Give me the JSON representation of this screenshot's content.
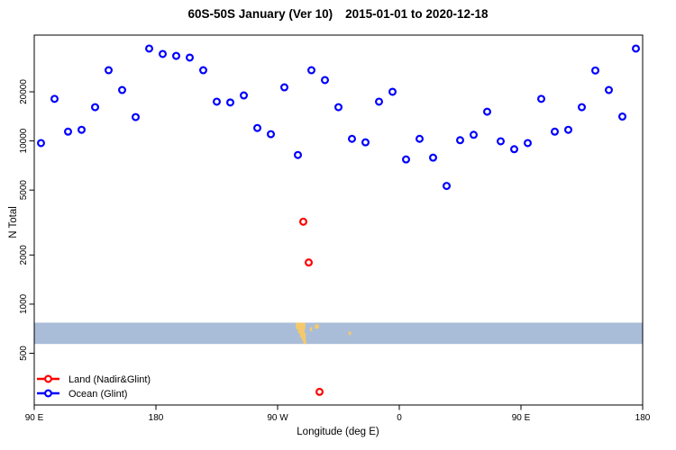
{
  "chart_data": {
    "type": "scatter",
    "title_main": "60S-50S January (Ver 10)",
    "title_dates": "2015-01-01 to 2020-12-18",
    "xlabel": "Longitude (deg E)",
    "ylabel": "N Total",
    "y_scale": "log",
    "grid": false,
    "xlim": [
      90,
      540
    ],
    "ylim": [
      241,
      44500
    ],
    "x_ticks": [
      {
        "pos": 90,
        "label": "90 E"
      },
      {
        "pos": 180,
        "label": "180"
      },
      {
        "pos": 270,
        "label": "90 W"
      },
      {
        "pos": 360,
        "label": "0"
      },
      {
        "pos": 450,
        "label": "90 E"
      },
      {
        "pos": 540,
        "label": "180"
      }
    ],
    "y_ticks": [
      {
        "value": 500,
        "label": "500"
      },
      {
        "value": 1000,
        "label": "1000"
      },
      {
        "value": 2000,
        "label": "2000"
      },
      {
        "value": 5000,
        "label": "5000"
      },
      {
        "value": 10000,
        "label": "10000"
      },
      {
        "value": 20000,
        "label": "20000"
      }
    ],
    "legend_position": "bottom-left",
    "series": [
      {
        "name": "Land (Nadir&Glint)",
        "color": "#ff0000",
        "points": [
          [
            289,
            3200
          ],
          [
            293,
            1800
          ],
          [
            301,
            290
          ]
        ]
      },
      {
        "name": "Ocean (Glint)",
        "color": "#0000ff",
        "points": [
          [
            95,
            9700
          ],
          [
            105,
            18100
          ],
          [
            115,
            11400
          ],
          [
            125,
            11700
          ],
          [
            135,
            16100
          ],
          [
            145,
            27100
          ],
          [
            155,
            20500
          ],
          [
            165,
            14000
          ],
          [
            175,
            36800
          ],
          [
            185,
            34100
          ],
          [
            195,
            33200
          ],
          [
            205,
            32400
          ],
          [
            215,
            27100
          ],
          [
            225,
            17400
          ],
          [
            235,
            17200
          ],
          [
            245,
            19000
          ],
          [
            255,
            12000
          ],
          [
            265,
            11000
          ],
          [
            275,
            21300
          ],
          [
            285,
            8200
          ],
          [
            295,
            27100
          ],
          [
            305,
            23600
          ],
          [
            315,
            16100
          ],
          [
            325,
            10300
          ],
          [
            335,
            9800
          ],
          [
            345,
            17400
          ],
          [
            355,
            20000
          ],
          [
            365,
            7700
          ],
          [
            375,
            10300
          ],
          [
            385,
            7900
          ],
          [
            395,
            5300
          ],
          [
            405,
            10100
          ],
          [
            415,
            10900
          ],
          [
            425,
            15100
          ],
          [
            435,
            9950
          ],
          [
            445,
            8900
          ],
          [
            455,
            9700
          ],
          [
            465,
            18100
          ],
          [
            475,
            11400
          ],
          [
            485,
            11700
          ],
          [
            495,
            16100
          ],
          [
            505,
            27000
          ],
          [
            515,
            20500
          ],
          [
            525,
            14100
          ],
          [
            535,
            36800
          ]
        ]
      }
    ],
    "latitude_strip": {
      "description": "60S-50S land/ocean map strip",
      "ocean_color": "#a9bdd9",
      "land_color": "#f5c96b",
      "value_range": [
        570,
        770
      ],
      "land_patches": [
        [
          283.5,
          290.5,
          0.0,
          0.3
        ],
        [
          285.0,
          290.0,
          0.28,
          0.5
        ],
        [
          286.5,
          290.8,
          0.48,
          0.68
        ],
        [
          287.8,
          290.8,
          0.66,
          0.84
        ],
        [
          289.0,
          291.2,
          0.82,
          1.0
        ],
        [
          294.0,
          295.5,
          0.22,
          0.4
        ],
        [
          297.5,
          300.5,
          0.08,
          0.28
        ],
        [
          322.5,
          324.3,
          0.42,
          0.58
        ]
      ]
    }
  }
}
